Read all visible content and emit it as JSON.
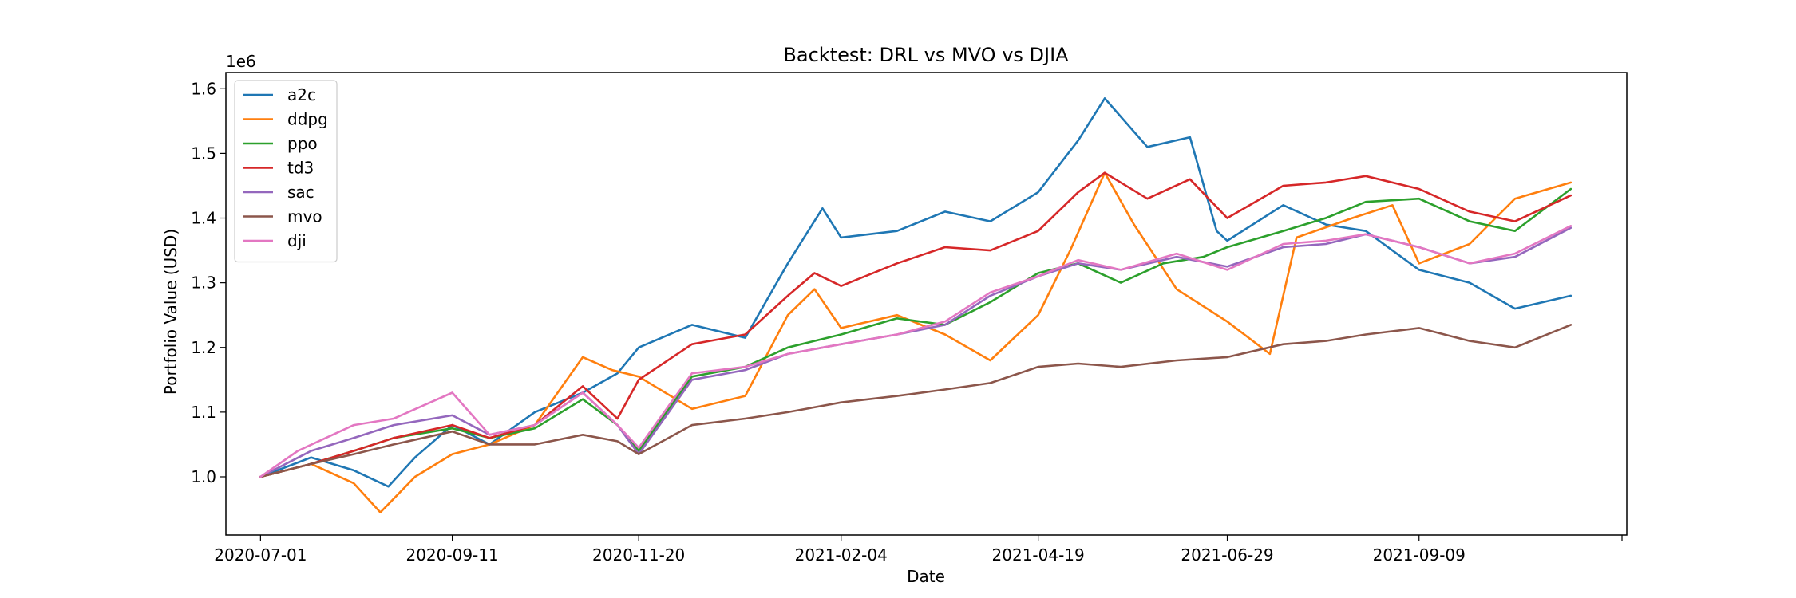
{
  "chart_data": {
    "type": "line",
    "title": "Backtest: DRL vs MVO vs DJIA",
    "xlabel": "Date",
    "ylabel": "Portfolio Value (USD)",
    "y_multiplier_label": "1e6",
    "y_scale_factor": 1000000,
    "xlim": [
      "2020-06-18",
      "2021-11-26"
    ],
    "ylim": [
      910000,
      1625000
    ],
    "x_ticks": [
      "2020-07-01",
      "2020-09-11",
      "2020-11-20",
      "2021-02-04",
      "2021-04-19",
      "2021-06-29",
      "2021-09-09"
    ],
    "y_ticks": [
      1000000,
      1100000,
      1200000,
      1300000,
      1400000,
      1500000,
      1600000
    ],
    "y_tick_labels": [
      "1.0",
      "1.1",
      "1.2",
      "1.3",
      "1.4",
      "1.5",
      "1.6"
    ],
    "grid": false,
    "legend_position": "top-left",
    "series": [
      {
        "name": "a2c",
        "color": "#1f77b4",
        "points": [
          [
            "2020-07-01",
            1000000
          ],
          [
            "2020-07-20",
            1030000
          ],
          [
            "2020-08-05",
            1010000
          ],
          [
            "2020-08-18",
            985000
          ],
          [
            "2020-08-28",
            1030000
          ],
          [
            "2020-09-11",
            1080000
          ],
          [
            "2020-09-25",
            1050000
          ],
          [
            "2020-10-12",
            1100000
          ],
          [
            "2020-10-30",
            1130000
          ],
          [
            "2020-11-12",
            1160000
          ],
          [
            "2020-11-20",
            1200000
          ],
          [
            "2020-12-10",
            1235000
          ],
          [
            "2020-12-30",
            1215000
          ],
          [
            "2021-01-15",
            1330000
          ],
          [
            "2021-01-28",
            1415000
          ],
          [
            "2021-02-04",
            1370000
          ],
          [
            "2021-02-25",
            1380000
          ],
          [
            "2021-03-15",
            1410000
          ],
          [
            "2021-04-01",
            1395000
          ],
          [
            "2021-04-19",
            1440000
          ],
          [
            "2021-05-04",
            1520000
          ],
          [
            "2021-05-14",
            1585000
          ],
          [
            "2021-05-30",
            1510000
          ],
          [
            "2021-06-15",
            1525000
          ],
          [
            "2021-06-25",
            1380000
          ],
          [
            "2021-06-29",
            1365000
          ],
          [
            "2021-07-20",
            1420000
          ],
          [
            "2021-08-05",
            1390000
          ],
          [
            "2021-08-20",
            1380000
          ],
          [
            "2021-09-09",
            1320000
          ],
          [
            "2021-09-28",
            1300000
          ],
          [
            "2021-10-15",
            1260000
          ],
          [
            "2021-11-05",
            1280000
          ]
        ]
      },
      {
        "name": "ddpg",
        "color": "#ff7f0e",
        "points": [
          [
            "2020-07-01",
            1000000
          ],
          [
            "2020-07-20",
            1020000
          ],
          [
            "2020-08-05",
            990000
          ],
          [
            "2020-08-15",
            945000
          ],
          [
            "2020-08-28",
            1000000
          ],
          [
            "2020-09-11",
            1035000
          ],
          [
            "2020-09-25",
            1050000
          ],
          [
            "2020-10-12",
            1080000
          ],
          [
            "2020-10-30",
            1185000
          ],
          [
            "2020-11-10",
            1165000
          ],
          [
            "2020-11-20",
            1155000
          ],
          [
            "2020-12-10",
            1105000
          ],
          [
            "2020-12-30",
            1125000
          ],
          [
            "2021-01-15",
            1250000
          ],
          [
            "2021-01-25",
            1290000
          ],
          [
            "2021-02-04",
            1230000
          ],
          [
            "2021-02-25",
            1250000
          ],
          [
            "2021-03-15",
            1220000
          ],
          [
            "2021-04-01",
            1180000
          ],
          [
            "2021-04-19",
            1250000
          ],
          [
            "2021-05-01",
            1350000
          ],
          [
            "2021-05-14",
            1470000
          ],
          [
            "2021-05-25",
            1390000
          ],
          [
            "2021-06-10",
            1290000
          ],
          [
            "2021-06-29",
            1240000
          ],
          [
            "2021-07-15",
            1190000
          ],
          [
            "2021-07-25",
            1370000
          ],
          [
            "2021-08-15",
            1400000
          ],
          [
            "2021-08-30",
            1420000
          ],
          [
            "2021-09-09",
            1330000
          ],
          [
            "2021-09-28",
            1360000
          ],
          [
            "2021-10-15",
            1430000
          ],
          [
            "2021-11-05",
            1455000
          ]
        ]
      },
      {
        "name": "ppo",
        "color": "#2ca02c",
        "points": [
          [
            "2020-07-01",
            1000000
          ],
          [
            "2020-07-20",
            1020000
          ],
          [
            "2020-08-05",
            1040000
          ],
          [
            "2020-08-20",
            1060000
          ],
          [
            "2020-09-11",
            1075000
          ],
          [
            "2020-09-25",
            1060000
          ],
          [
            "2020-10-12",
            1075000
          ],
          [
            "2020-10-30",
            1120000
          ],
          [
            "2020-11-12",
            1080000
          ],
          [
            "2020-11-20",
            1040000
          ],
          [
            "2020-12-10",
            1155000
          ],
          [
            "2020-12-30",
            1170000
          ],
          [
            "2021-01-15",
            1200000
          ],
          [
            "2021-02-04",
            1220000
          ],
          [
            "2021-02-25",
            1245000
          ],
          [
            "2021-03-15",
            1235000
          ],
          [
            "2021-04-01",
            1270000
          ],
          [
            "2021-04-19",
            1315000
          ],
          [
            "2021-05-04",
            1330000
          ],
          [
            "2021-05-20",
            1300000
          ],
          [
            "2021-06-05",
            1330000
          ],
          [
            "2021-06-20",
            1340000
          ],
          [
            "2021-06-29",
            1355000
          ],
          [
            "2021-07-20",
            1380000
          ],
          [
            "2021-08-05",
            1400000
          ],
          [
            "2021-08-20",
            1425000
          ],
          [
            "2021-09-09",
            1430000
          ],
          [
            "2021-09-28",
            1395000
          ],
          [
            "2021-10-15",
            1380000
          ],
          [
            "2021-11-05",
            1445000
          ]
        ]
      },
      {
        "name": "td3",
        "color": "#d62728",
        "points": [
          [
            "2020-07-01",
            1000000
          ],
          [
            "2020-07-20",
            1020000
          ],
          [
            "2020-08-05",
            1040000
          ],
          [
            "2020-08-20",
            1060000
          ],
          [
            "2020-09-11",
            1080000
          ],
          [
            "2020-09-25",
            1060000
          ],
          [
            "2020-10-12",
            1080000
          ],
          [
            "2020-10-30",
            1140000
          ],
          [
            "2020-11-12",
            1090000
          ],
          [
            "2020-11-20",
            1150000
          ],
          [
            "2020-12-10",
            1205000
          ],
          [
            "2020-12-30",
            1220000
          ],
          [
            "2021-01-15",
            1280000
          ],
          [
            "2021-01-25",
            1315000
          ],
          [
            "2021-02-04",
            1295000
          ],
          [
            "2021-02-25",
            1330000
          ],
          [
            "2021-03-15",
            1355000
          ],
          [
            "2021-04-01",
            1350000
          ],
          [
            "2021-04-19",
            1380000
          ],
          [
            "2021-05-04",
            1440000
          ],
          [
            "2021-05-14",
            1470000
          ],
          [
            "2021-05-30",
            1430000
          ],
          [
            "2021-06-15",
            1460000
          ],
          [
            "2021-06-29",
            1400000
          ],
          [
            "2021-07-20",
            1450000
          ],
          [
            "2021-08-05",
            1455000
          ],
          [
            "2021-08-20",
            1465000
          ],
          [
            "2021-09-09",
            1445000
          ],
          [
            "2021-09-28",
            1410000
          ],
          [
            "2021-10-15",
            1395000
          ],
          [
            "2021-11-05",
            1435000
          ]
        ]
      },
      {
        "name": "sac",
        "color": "#9467bd",
        "points": [
          [
            "2020-07-01",
            1000000
          ],
          [
            "2020-07-20",
            1040000
          ],
          [
            "2020-08-05",
            1060000
          ],
          [
            "2020-08-20",
            1080000
          ],
          [
            "2020-09-11",
            1095000
          ],
          [
            "2020-09-25",
            1065000
          ],
          [
            "2020-10-12",
            1080000
          ],
          [
            "2020-10-30",
            1130000
          ],
          [
            "2020-11-12",
            1080000
          ],
          [
            "2020-11-20",
            1035000
          ],
          [
            "2020-12-10",
            1150000
          ],
          [
            "2020-12-30",
            1165000
          ],
          [
            "2021-01-15",
            1190000
          ],
          [
            "2021-02-04",
            1205000
          ],
          [
            "2021-02-25",
            1220000
          ],
          [
            "2021-03-15",
            1235000
          ],
          [
            "2021-04-01",
            1280000
          ],
          [
            "2021-04-19",
            1310000
          ],
          [
            "2021-05-04",
            1330000
          ],
          [
            "2021-05-20",
            1320000
          ],
          [
            "2021-06-10",
            1340000
          ],
          [
            "2021-06-29",
            1325000
          ],
          [
            "2021-07-20",
            1355000
          ],
          [
            "2021-08-05",
            1360000
          ],
          [
            "2021-08-20",
            1375000
          ],
          [
            "2021-09-09",
            1355000
          ],
          [
            "2021-09-28",
            1330000
          ],
          [
            "2021-10-15",
            1340000
          ],
          [
            "2021-11-05",
            1385000
          ]
        ]
      },
      {
        "name": "mvo",
        "color": "#8c564b",
        "points": [
          [
            "2020-07-01",
            1000000
          ],
          [
            "2020-07-20",
            1020000
          ],
          [
            "2020-08-05",
            1035000
          ],
          [
            "2020-08-20",
            1050000
          ],
          [
            "2020-09-11",
            1070000
          ],
          [
            "2020-09-25",
            1050000
          ],
          [
            "2020-10-12",
            1050000
          ],
          [
            "2020-10-30",
            1065000
          ],
          [
            "2020-11-12",
            1055000
          ],
          [
            "2020-11-20",
            1035000
          ],
          [
            "2020-12-10",
            1080000
          ],
          [
            "2020-12-30",
            1090000
          ],
          [
            "2021-01-15",
            1100000
          ],
          [
            "2021-02-04",
            1115000
          ],
          [
            "2021-02-25",
            1125000
          ],
          [
            "2021-03-15",
            1135000
          ],
          [
            "2021-04-01",
            1145000
          ],
          [
            "2021-04-19",
            1170000
          ],
          [
            "2021-05-04",
            1175000
          ],
          [
            "2021-05-20",
            1170000
          ],
          [
            "2021-06-10",
            1180000
          ],
          [
            "2021-06-29",
            1185000
          ],
          [
            "2021-07-20",
            1205000
          ],
          [
            "2021-08-05",
            1210000
          ],
          [
            "2021-08-20",
            1220000
          ],
          [
            "2021-09-09",
            1230000
          ],
          [
            "2021-09-28",
            1210000
          ],
          [
            "2021-10-15",
            1200000
          ],
          [
            "2021-11-05",
            1235000
          ]
        ]
      },
      {
        "name": "dji",
        "color": "#e377c2",
        "points": [
          [
            "2020-07-01",
            1000000
          ],
          [
            "2020-07-15",
            1040000
          ],
          [
            "2020-08-05",
            1080000
          ],
          [
            "2020-08-20",
            1090000
          ],
          [
            "2020-09-11",
            1130000
          ],
          [
            "2020-09-25",
            1065000
          ],
          [
            "2020-10-12",
            1080000
          ],
          [
            "2020-10-30",
            1130000
          ],
          [
            "2020-11-12",
            1080000
          ],
          [
            "2020-11-20",
            1045000
          ],
          [
            "2020-12-10",
            1160000
          ],
          [
            "2020-12-30",
            1170000
          ],
          [
            "2021-01-15",
            1190000
          ],
          [
            "2021-02-04",
            1205000
          ],
          [
            "2021-02-25",
            1220000
          ],
          [
            "2021-03-15",
            1240000
          ],
          [
            "2021-04-01",
            1285000
          ],
          [
            "2021-04-19",
            1310000
          ],
          [
            "2021-05-04",
            1335000
          ],
          [
            "2021-05-20",
            1320000
          ],
          [
            "2021-06-10",
            1345000
          ],
          [
            "2021-06-29",
            1320000
          ],
          [
            "2021-07-20",
            1360000
          ],
          [
            "2021-08-05",
            1365000
          ],
          [
            "2021-08-20",
            1375000
          ],
          [
            "2021-09-09",
            1355000
          ],
          [
            "2021-09-28",
            1330000
          ],
          [
            "2021-10-15",
            1345000
          ],
          [
            "2021-11-05",
            1388000
          ]
        ]
      }
    ]
  }
}
